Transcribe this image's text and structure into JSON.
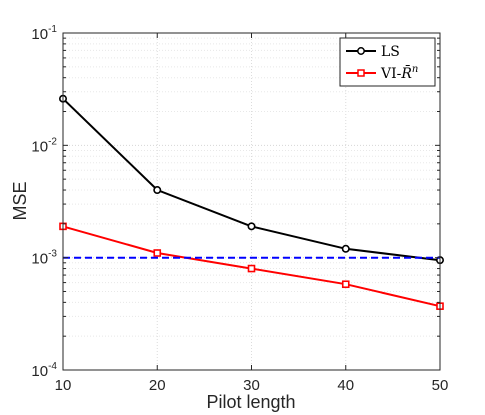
{
  "chart_data": {
    "type": "line",
    "title": "",
    "xlabel": "Pilot length",
    "ylabel": "MSE",
    "x": [
      10,
      20,
      30,
      40,
      50
    ],
    "xlim": [
      10,
      50
    ],
    "ylim": [
      0.0001,
      0.1
    ],
    "yscale": "log",
    "grid": true,
    "legend_position": "top-right",
    "x_ticks": [
      "10",
      "20",
      "30",
      "40",
      "50"
    ],
    "y_ticks": [
      {
        "value": 0.0001,
        "base": "10",
        "exp": "-4"
      },
      {
        "value": 0.001,
        "base": "10",
        "exp": "-3"
      },
      {
        "value": 0.01,
        "base": "10",
        "exp": "-2"
      },
      {
        "value": 0.1,
        "base": "10",
        "exp": "-1"
      }
    ],
    "series": [
      {
        "name": "LS",
        "values": [
          0.026,
          0.004,
          0.0019,
          0.0012,
          0.00095
        ],
        "color": "#000000",
        "marker": "circle",
        "dash": "solid"
      },
      {
        "name": "VI-R̄ⁿ",
        "values": [
          0.0019,
          0.0011,
          0.0008,
          0.00058,
          0.00037
        ],
        "color": "#ff0000",
        "marker": "square",
        "dash": "solid"
      },
      {
        "values": [
          0.001,
          0.001,
          0.001,
          0.001,
          0.001
        ],
        "color": "#0000ff",
        "marker": "none",
        "dash": "dashed"
      }
    ],
    "legend_items": [
      {
        "label_main": "VI-",
        "label_sym": "R̄",
        "label_sup": "n"
      }
    ]
  }
}
